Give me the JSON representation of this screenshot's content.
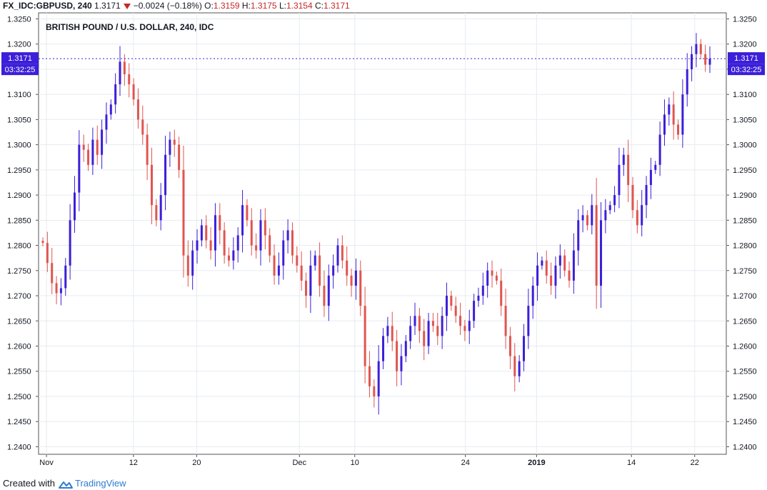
{
  "header": {
    "symbol": "FX_IDC:GBPUSD, 240",
    "last": "1.3171",
    "change": "−0.0024 (−0.18%)",
    "o_label": "O:",
    "o_value": "1.3159",
    "h_label": "H:",
    "h_value": "1.3175",
    "l_label": "L:",
    "l_value": "1.3154",
    "c_label": "C:",
    "c_value": "1.3171"
  },
  "footer": {
    "created_with": "Created with",
    "brand": "TradingView"
  },
  "colors": {
    "up": "#3b1fd9",
    "down": "#e0554f",
    "grid": "#e6ebf1",
    "axis": "#555555",
    "badge": "#3b1fd9",
    "change_down": "#c62828"
  },
  "chart_data": {
    "type": "candlestick",
    "title": "BRITISH POUND / U.S. DOLLAR, 240, IDC",
    "ylim": [
      1.2385,
      1.3262
    ],
    "y_ticks": [
      "1.2400",
      "1.2450",
      "1.2500",
      "1.2550",
      "1.2600",
      "1.2650",
      "1.2700",
      "1.2750",
      "1.2800",
      "1.2850",
      "1.2900",
      "1.2950",
      "1.3000",
      "1.3050",
      "1.3100",
      "1.3150",
      "1.3200",
      "1.3250"
    ],
    "x_ticks": [
      {
        "label": "Nov",
        "date": "2018-11-01"
      },
      {
        "label": "12",
        "date": "2018-11-12"
      },
      {
        "label": "20",
        "date": "2018-11-20"
      },
      {
        "label": "Dec",
        "date": "2018-12-03"
      },
      {
        "label": "10",
        "date": "2018-12-10"
      },
      {
        "label": "24",
        "date": "2018-12-24"
      },
      {
        "label": "2019",
        "date": "2019-01-02"
      },
      {
        "label": "14",
        "date": "2019-01-14"
      },
      {
        "label": "22",
        "date": "2019-01-22"
      }
    ],
    "last_price": "1.3171",
    "countdown": "03:32:25",
    "closes": [
      1.2805,
      1.2765,
      1.2725,
      1.2705,
      1.2715,
      1.276,
      1.285,
      1.2905,
      1.3,
      1.299,
      1.296,
      1.301,
      1.298,
      1.303,
      1.306,
      1.308,
      1.312,
      1.3165,
      1.314,
      1.312,
      1.309,
      1.305,
      1.302,
      1.296,
      1.288,
      1.285,
      1.29,
      1.298,
      1.301,
      1.3,
      1.295,
      1.278,
      1.274,
      1.279,
      1.281,
      1.284,
      1.281,
      1.279,
      1.286,
      1.283,
      1.278,
      1.277,
      1.279,
      1.282,
      1.288,
      1.285,
      1.28,
      1.279,
      1.285,
      1.282,
      1.278,
      1.274,
      1.276,
      1.281,
      1.283,
      1.278,
      1.276,
      1.273,
      1.27,
      1.276,
      1.278,
      1.272,
      1.268,
      1.274,
      1.276,
      1.28,
      1.277,
      1.274,
      1.272,
      1.275,
      1.268,
      1.256,
      1.252,
      1.25,
      1.257,
      1.262,
      1.264,
      1.261,
      1.255,
      1.258,
      1.261,
      1.264,
      1.266,
      1.263,
      1.26,
      1.265,
      1.264,
      1.262,
      1.266,
      1.27,
      1.268,
      1.266,
      1.264,
      1.263,
      1.265,
      1.269,
      1.27,
      1.272,
      1.275,
      1.274,
      1.273,
      1.268,
      1.262,
      1.258,
      1.254,
      1.257,
      1.262,
      1.268,
      1.272,
      1.276,
      1.277,
      1.274,
      1.272,
      1.276,
      1.278,
      1.275,
      1.273,
      1.279,
      1.285,
      1.286,
      1.284,
      1.288,
      1.272,
      1.285,
      1.287,
      1.288,
      1.29,
      1.296,
      1.298,
      1.292,
      1.287,
      1.284,
      1.288,
      1.292,
      1.295,
      1.296,
      1.302,
      1.306,
      1.308,
      1.304,
      1.302,
      1.31,
      1.315,
      1.318,
      1.32,
      1.318,
      1.3159,
      1.3171
    ],
    "x_domain": [
      "2018-10-31",
      "2019-01-26"
    ]
  }
}
